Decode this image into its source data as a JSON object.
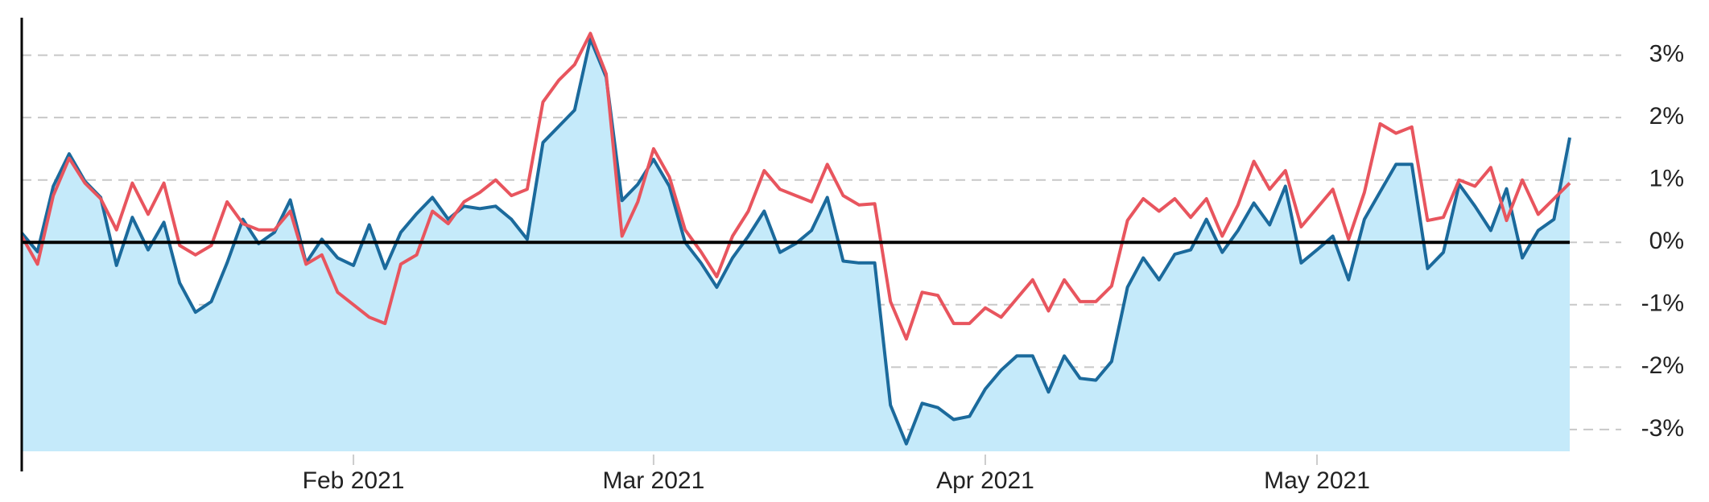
{
  "chart_data": {
    "type": "line",
    "categories": [
      null,
      null,
      null,
      null,
      null,
      null,
      null,
      null,
      null,
      null,
      null,
      null,
      null,
      null,
      null,
      null,
      null,
      null,
      null,
      null,
      null,
      "Feb 2021",
      null,
      null,
      null,
      null,
      null,
      null,
      null,
      null,
      null,
      null,
      null,
      null,
      null,
      null,
      null,
      null,
      null,
      null,
      "Mar 2021",
      null,
      null,
      null,
      null,
      null,
      null,
      null,
      null,
      null,
      null,
      null,
      null,
      null,
      null,
      null,
      null,
      null,
      null,
      null,
      null,
      "Apr 2021",
      null,
      null,
      null,
      null,
      null,
      null,
      null,
      null,
      null,
      null,
      null,
      null,
      null,
      null,
      null,
      null,
      null,
      null,
      null,
      null,
      "May 2021",
      null,
      null,
      null,
      null,
      null,
      null,
      null,
      null,
      null,
      null,
      null,
      null,
      null,
      null,
      null,
      null
    ],
    "series": [
      {
        "color": "#1b6a9c",
        "area_color": "#c5eafa",
        "values": [
          0.15,
          -0.15,
          0.9,
          1.42,
          0.98,
          0.72,
          -0.37,
          0.4,
          -0.12,
          0.32,
          -0.65,
          -1.12,
          -0.95,
          -0.33,
          0.37,
          -0.02,
          0.16,
          0.68,
          -0.33,
          0.05,
          -0.25,
          -0.37,
          0.28,
          -0.42,
          0.16,
          0.46,
          0.72,
          0.37,
          0.58,
          0.54,
          0.58,
          0.37,
          0.05,
          1.6,
          1.86,
          2.12,
          3.26,
          2.65,
          0.67,
          0.93,
          1.33,
          0.9,
          0,
          -0.33,
          -0.72,
          -0.25,
          0.1,
          0.5,
          -0.16,
          -0.02,
          0.19,
          0.72,
          -0.3,
          -0.33,
          -0.33,
          -2.61,
          -3.23,
          -2.58,
          -2.65,
          -2.84,
          -2.79,
          -2.35,
          -2.05,
          -1.82,
          -1.82,
          -2.4,
          -1.82,
          -2.18,
          -2.21,
          -1.91,
          -0.72,
          -0.25,
          -0.6,
          -0.19,
          -0.12,
          0.37,
          -0.16,
          0.19,
          0.63,
          0.28,
          0.9,
          -0.33,
          -0.12,
          0.1,
          -0.6,
          0.37,
          0.81,
          1.25,
          1.25,
          -0.42,
          -0.16,
          0.93,
          0.58,
          0.19,
          0.86,
          -0.25,
          0.19,
          0.37,
          1.68
        ]
      },
      {
        "color": "#e8555e",
        "values": [
          0.1,
          -0.35,
          0.75,
          1.35,
          0.95,
          0.7,
          0.2,
          0.95,
          0.45,
          0.95,
          -0.05,
          -0.2,
          -0.05,
          0.65,
          0.3,
          0.2,
          0.2,
          0.5,
          -0.35,
          -0.2,
          -0.8,
          -1.0,
          -1.2,
          -1.3,
          -0.35,
          -0.2,
          0.5,
          0.3,
          0.65,
          0.8,
          1.0,
          0.75,
          0.85,
          2.25,
          2.6,
          2.85,
          3.35,
          2.7,
          0.1,
          0.65,
          1.5,
          1.05,
          0.2,
          -0.15,
          -0.55,
          0.1,
          0.5,
          1.15,
          0.85,
          0.75,
          0.65,
          1.25,
          0.75,
          0.6,
          0.62,
          -0.95,
          -1.55,
          -0.8,
          -0.85,
          -1.3,
          -1.3,
          -1.05,
          -1.2,
          -0.9,
          -0.6,
          -1.1,
          -0.6,
          -0.95,
          -0.95,
          -0.7,
          0.35,
          0.7,
          0.5,
          0.7,
          0.4,
          0.7,
          0.1,
          0.6,
          1.3,
          0.85,
          1.15,
          0.25,
          0.55,
          0.85,
          0.05,
          0.8,
          1.9,
          1.75,
          1.85,
          0.35,
          0.4,
          1.0,
          0.9,
          1.2,
          0.35,
          1.0,
          0.45,
          0.7,
          0.95
        ]
      }
    ],
    "ylim": [
      -3.35,
      3.55
    ],
    "yticks": [
      {
        "value": -3,
        "label": "-3%"
      },
      {
        "value": -2,
        "label": "-2%"
      },
      {
        "value": -1,
        "label": "-1%"
      },
      {
        "value": 0,
        "label": "0%"
      },
      {
        "value": 1,
        "label": "1%"
      },
      {
        "value": 2,
        "label": "2%"
      },
      {
        "value": 3,
        "label": "3%"
      }
    ],
    "y_axis_side": "right",
    "grid": true
  }
}
